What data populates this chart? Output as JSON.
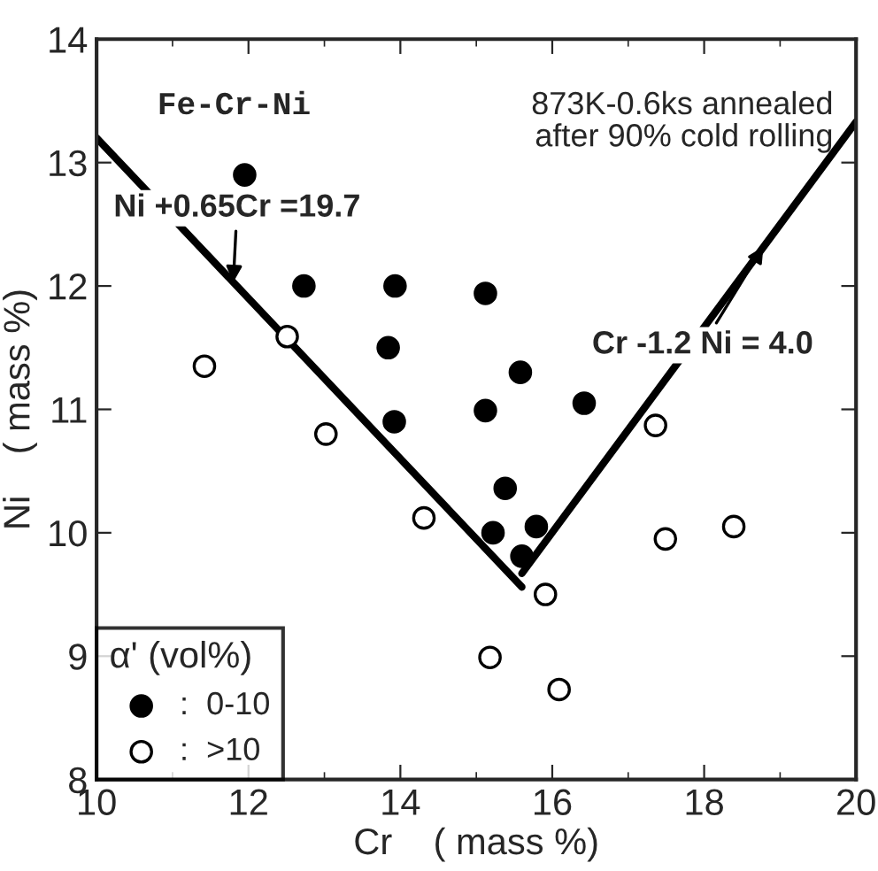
{
  "chart_data": {
    "type": "scatter",
    "xlabel": "Cr    ( mass %)",
    "ylabel": "Ni    ( mass %)",
    "legend_title": "α' (vol%)",
    "xlim": [
      10,
      20
    ],
    "ylim": [
      8,
      14
    ],
    "xticks": [
      10,
      12,
      14,
      16,
      18,
      20
    ],
    "yticks": [
      8,
      9,
      10,
      11,
      12,
      13,
      14
    ],
    "grid": false,
    "legend": "bottom left",
    "series": [
      {
        "name": ":  0-10",
        "marker": "circle",
        "color": "#000000",
        "x": [
          11.95,
          12.73,
          13.93,
          15.12,
          13.84,
          15.58,
          13.92,
          15.12,
          16.42,
          15.38,
          15.22,
          15.79,
          15.6
        ],
        "values": [
          12.9,
          12.0,
          12.0,
          11.94,
          11.5,
          11.3,
          10.9,
          10.99,
          11.05,
          10.36,
          10.0,
          10.05,
          9.81
        ]
      },
      {
        "name": ":  >10",
        "marker": "circle",
        "color": "#ffffff",
        "x": [
          11.42,
          12.51,
          13.02,
          17.36,
          14.31,
          17.49,
          18.39,
          15.91,
          15.18,
          16.09
        ],
        "values": [
          11.35,
          11.59,
          10.8,
          10.87,
          10.12,
          9.95,
          10.05,
          9.5,
          8.99,
          8.73
        ]
      },
      {
        "type": "line",
        "marker": "none",
        "color": "#000000",
        "x": [
          10,
          15.6
        ],
        "values": [
          13.2,
          9.56
        ]
      },
      {
        "type": "line",
        "marker": "none",
        "color": "#000000",
        "x": [
          15.6,
          20
        ],
        "values": [
          9.67,
          13.33
        ]
      }
    ],
    "annotations": [
      "Fe-Cr-Ni",
      "873K-0.6ks annealed\nafter 90% cold rolling",
      {
        "text": "Ni +0.65Cr =19.7",
        "x": 11.8,
        "y": 12.03
      },
      {
        "text": "Cr -1.2 Ni = 4.0",
        "x": 18.78,
        "y": 12.32
      }
    ]
  }
}
